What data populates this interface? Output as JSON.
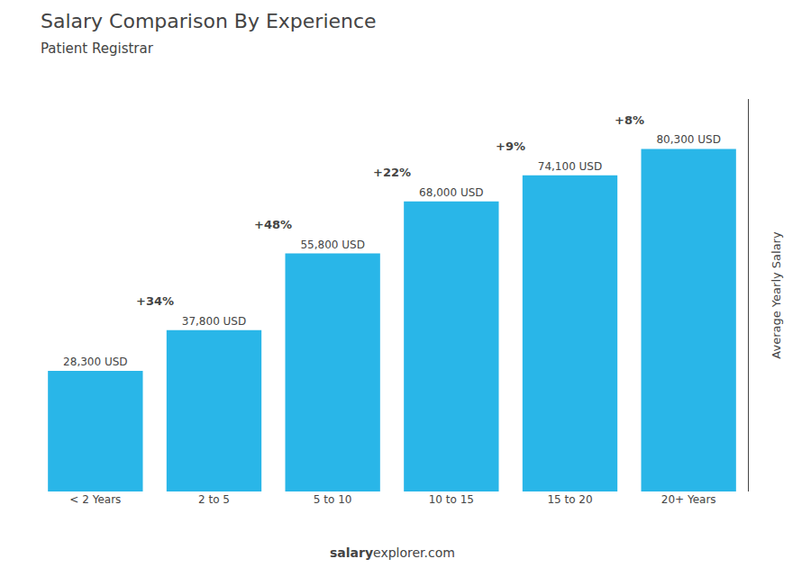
{
  "chart_data": {
    "type": "bar",
    "title": "Salary Comparison By Experience",
    "subtitle": "Patient Registrar",
    "ylabel": "Average Yearly Salary",
    "categories": [
      "< 2 Years",
      "2 to 5",
      "5 to 10",
      "10 to 15",
      "15 to 20",
      "20+ Years"
    ],
    "values": [
      28300,
      37800,
      55800,
      68000,
      74100,
      80300
    ],
    "value_labels": [
      "28,300 USD",
      "37,800 USD",
      "55,800 USD",
      "68,000 USD",
      "74,100 USD",
      "80,300 USD"
    ],
    "data_labels": true,
    "color": "#29b6e8",
    "ylim": [
      0,
      92000
    ],
    "tick_labels": "x",
    "grid": false,
    "annotations": [
      "+34%",
      "+48%",
      "+22%",
      "+9%",
      "+8%"
    ],
    "footer": [
      "salary",
      "explorer.com"
    ]
  }
}
